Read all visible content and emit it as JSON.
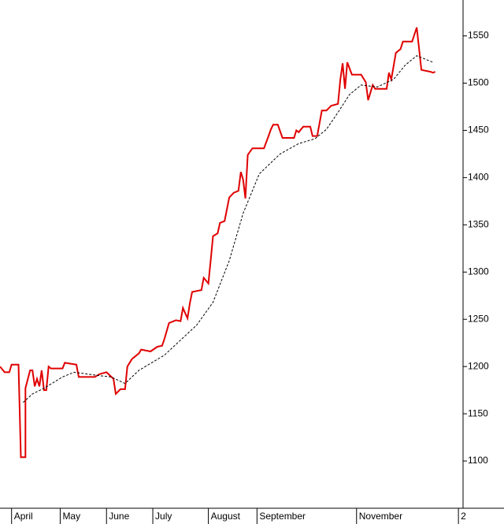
{
  "chart_data": {
    "type": "line",
    "xlim": [
      0,
      200
    ],
    "ylim": [
      1050,
      1588
    ],
    "yticks": [
      1100,
      1150,
      1200,
      1250,
      1300,
      1350,
      1400,
      1450,
      1500,
      1550
    ],
    "xticks": [
      {
        "value": 5,
        "label": "April"
      },
      {
        "value": 26,
        "label": "May"
      },
      {
        "value": 46,
        "label": "June"
      },
      {
        "value": 66,
        "label": "July"
      },
      {
        "value": 90,
        "label": "August"
      },
      {
        "value": 111,
        "label": "September"
      },
      {
        "value": 154,
        "label": "November"
      },
      {
        "value": 198,
        "label": "2"
      }
    ],
    "series": [
      {
        "color": "#e00000",
        "dashed": false,
        "x": [
          0,
          2,
          4,
          5,
          8,
          9,
          11,
          11,
          13,
          14,
          15,
          16,
          17,
          18,
          19,
          20,
          21,
          22,
          27,
          28,
          33,
          34,
          41,
          43,
          46,
          49,
          50,
          52,
          54,
          55,
          57,
          60,
          61,
          65,
          68,
          70,
          71,
          73,
          76,
          78,
          79,
          81,
          82,
          83,
          87,
          88,
          90,
          91,
          92,
          94,
          95,
          97,
          99,
          101,
          103,
          104,
          105,
          106,
          107,
          109,
          114,
          116,
          117,
          118,
          120,
          122,
          127,
          128,
          129,
          131,
          134,
          135,
          137,
          139,
          141,
          143,
          146,
          147,
          148,
          149,
          150,
          152,
          156,
          158,
          159,
          161,
          162,
          167,
          168,
          169,
          171,
          173,
          174,
          178,
          180,
          182,
          186,
          187,
          188
        ],
        "values": [
          1200,
          1194,
          1194,
          1202,
          1202,
          1104,
          1104,
          1177,
          1196,
          1196,
          1179,
          1187,
          1179,
          1196,
          1175,
          1175,
          1200,
          1198,
          1198,
          1204,
          1202,
          1189,
          1189,
          1192,
          1194,
          1187,
          1171,
          1176,
          1176,
          1200,
          1208,
          1214,
          1218,
          1216,
          1221,
          1222,
          1229,
          1246,
          1249,
          1248,
          1262,
          1251,
          1267,
          1279,
          1281,
          1294,
          1288,
          1312,
          1338,
          1341,
          1352,
          1354,
          1379,
          1384,
          1386,
          1406,
          1398,
          1378,
          1424,
          1431,
          1431,
          1444,
          1451,
          1456,
          1456,
          1442,
          1442,
          1450,
          1448,
          1454,
          1454,
          1444,
          1444,
          1471,
          1471,
          1476,
          1478,
          1504,
          1521,
          1494,
          1522,
          1509,
          1509,
          1501,
          1482,
          1498,
          1494,
          1494,
          1511,
          1504,
          1532,
          1536,
          1544,
          1544,
          1559,
          1514,
          1512,
          1511,
          1512
        ]
      },
      {
        "color": "#000000",
        "dashed": true,
        "x": [
          10,
          14,
          19,
          27,
          32,
          41,
          48,
          54,
          60,
          71,
          78,
          85,
          92,
          99,
          105,
          112,
          121,
          129,
          136,
          141,
          146,
          151,
          156,
          163,
          170,
          175,
          180,
          187
        ],
        "values": [
          1162,
          1171,
          1177,
          1189,
          1194,
          1191,
          1189,
          1182,
          1196,
          1212,
          1228,
          1244,
          1268,
          1312,
          1362,
          1404,
          1425,
          1436,
          1441,
          1451,
          1469,
          1488,
          1498,
          1496,
          1504,
          1519,
          1529,
          1522
        ]
      }
    ]
  }
}
